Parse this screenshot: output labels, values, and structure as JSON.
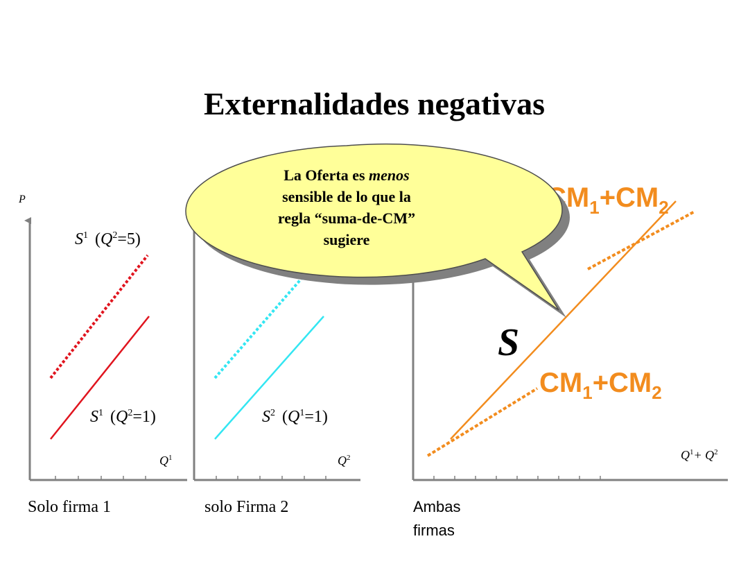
{
  "title": "Externalidades negativas",
  "callout": [
    "La Oferta es",
    "menos",
    "sensible de lo que la",
    "regla “suma-de-CM”",
    "sugiere"
  ],
  "panels": [
    {
      "axis_y": "P",
      "axis_x": [
        "Q",
        "1"
      ],
      "upper_label": [
        "S",
        "1",
        "(",
        "Q",
        "2",
        "=5)"
      ],
      "lower_label": [
        "S",
        "1",
        "(",
        "Q",
        "2",
        "=1)"
      ],
      "caption": "Solo firma 1"
    },
    {
      "axis_x": [
        "Q",
        "2"
      ],
      "lower_label": [
        "S",
        "2",
        "(",
        "Q",
        "1",
        "=1)"
      ],
      "caption": "solo Firma 2"
    },
    {
      "axis_x": [
        "Q",
        "1",
        "+ Q",
        "2"
      ],
      "upper_label": [
        "CM",
        "1",
        "+CM",
        "2"
      ],
      "lower_label": [
        "CM",
        "1",
        "+CM",
        "2"
      ],
      "curve_label": "S",
      "caption": [
        "Ambas",
        "firmas"
      ]
    }
  ]
}
